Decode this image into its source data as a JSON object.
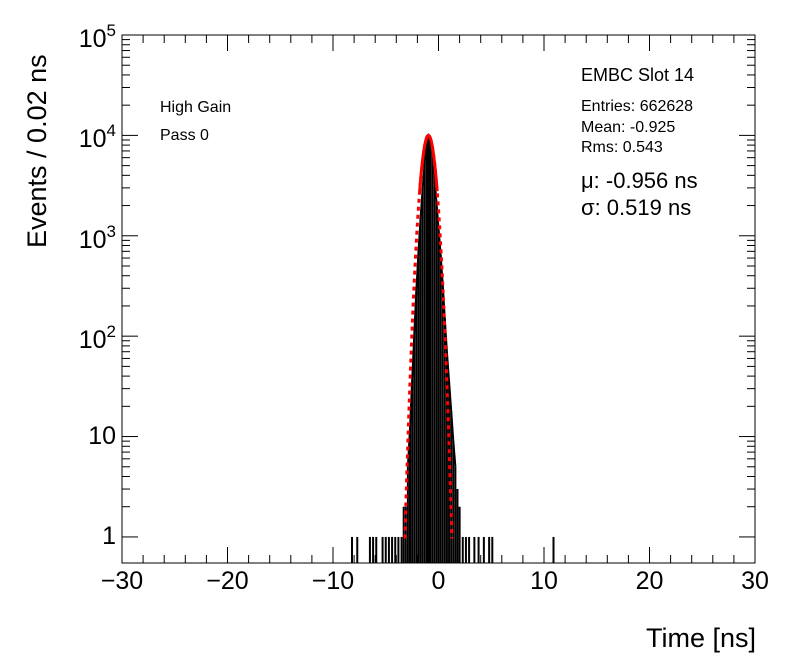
{
  "chart_data": {
    "type": "histogram",
    "xlabel": "Time [ns]",
    "ylabel": "Events / 0.02 ns",
    "xlim": [
      -30,
      30
    ],
    "ylim": [
      0.55,
      100000
    ],
    "y_scale": "log",
    "x_ticks": [
      "−30",
      "−20",
      "−10",
      "0",
      "10",
      "20",
      "30"
    ],
    "x_tick_values": [
      -30,
      -20,
      -10,
      0,
      10,
      20,
      30
    ],
    "y_tick_values": [
      1,
      10,
      100,
      1000,
      10000,
      100000
    ],
    "y_tick_labels": [
      {
        "base": "1",
        "exp": ""
      },
      {
        "base": "10",
        "exp": ""
      },
      {
        "base": "10",
        "exp": "2"
      },
      {
        "base": "10",
        "exp": "3"
      },
      {
        "base": "10",
        "exp": "4"
      },
      {
        "base": "10",
        "exp": "5"
      }
    ],
    "grid": false,
    "annotations": {
      "gain": "High Gain",
      "pass": "Pass 0",
      "slot": "EMBC Slot 14",
      "entries": "Entries: 662628",
      "mean": "Mean: -0.925",
      "rms": "Rms: 0.543",
      "mu": "μ: -0.956 ns",
      "sigma": "σ: 0.519 ns"
    },
    "series": [
      {
        "kind": "histogram",
        "color": "#000000",
        "bins": [
          [
            -8.2,
            1
          ],
          [
            -7.7,
            1
          ],
          [
            -6.5,
            1
          ],
          [
            -6.2,
            1
          ],
          [
            -5.9,
            1
          ],
          [
            -5.3,
            1
          ],
          [
            -5.0,
            1
          ],
          [
            -4.7,
            1
          ],
          [
            -4.4,
            1
          ],
          [
            -4.1,
            1
          ],
          [
            -3.8,
            1
          ],
          [
            -3.5,
            1
          ],
          [
            -3.3,
            2
          ],
          [
            -3.1,
            2
          ],
          [
            -2.9,
            5
          ],
          [
            -2.7,
            12
          ],
          [
            -2.5,
            35
          ],
          [
            -2.3,
            100
          ],
          [
            -2.1,
            280
          ],
          [
            -1.9,
            700
          ],
          [
            -1.7,
            1500
          ],
          [
            -1.5,
            3000
          ],
          [
            -1.3,
            5500
          ],
          [
            -1.1,
            8500
          ],
          [
            -0.95,
            10000
          ],
          [
            -0.8,
            9500
          ],
          [
            -0.6,
            7000
          ],
          [
            -0.4,
            4000
          ],
          [
            -0.2,
            2200
          ],
          [
            0.0,
            1200
          ],
          [
            0.2,
            650
          ],
          [
            0.4,
            330
          ],
          [
            0.6,
            150
          ],
          [
            0.8,
            70
          ],
          [
            1.0,
            35
          ],
          [
            1.2,
            18
          ],
          [
            1.4,
            9
          ],
          [
            1.6,
            5
          ],
          [
            1.8,
            3
          ],
          [
            2.0,
            2
          ],
          [
            2.3,
            1
          ],
          [
            2.6,
            1
          ],
          [
            2.9,
            1
          ],
          [
            3.4,
            1
          ],
          [
            3.8,
            1
          ],
          [
            4.3,
            1
          ],
          [
            4.8,
            1
          ],
          [
            5.1,
            1
          ],
          [
            10.9,
            1
          ]
        ]
      },
      {
        "kind": "gaussian_fit",
        "color": "#ff0000",
        "mu": -0.956,
        "sigma": 0.519,
        "amplitude": 10000
      }
    ]
  }
}
